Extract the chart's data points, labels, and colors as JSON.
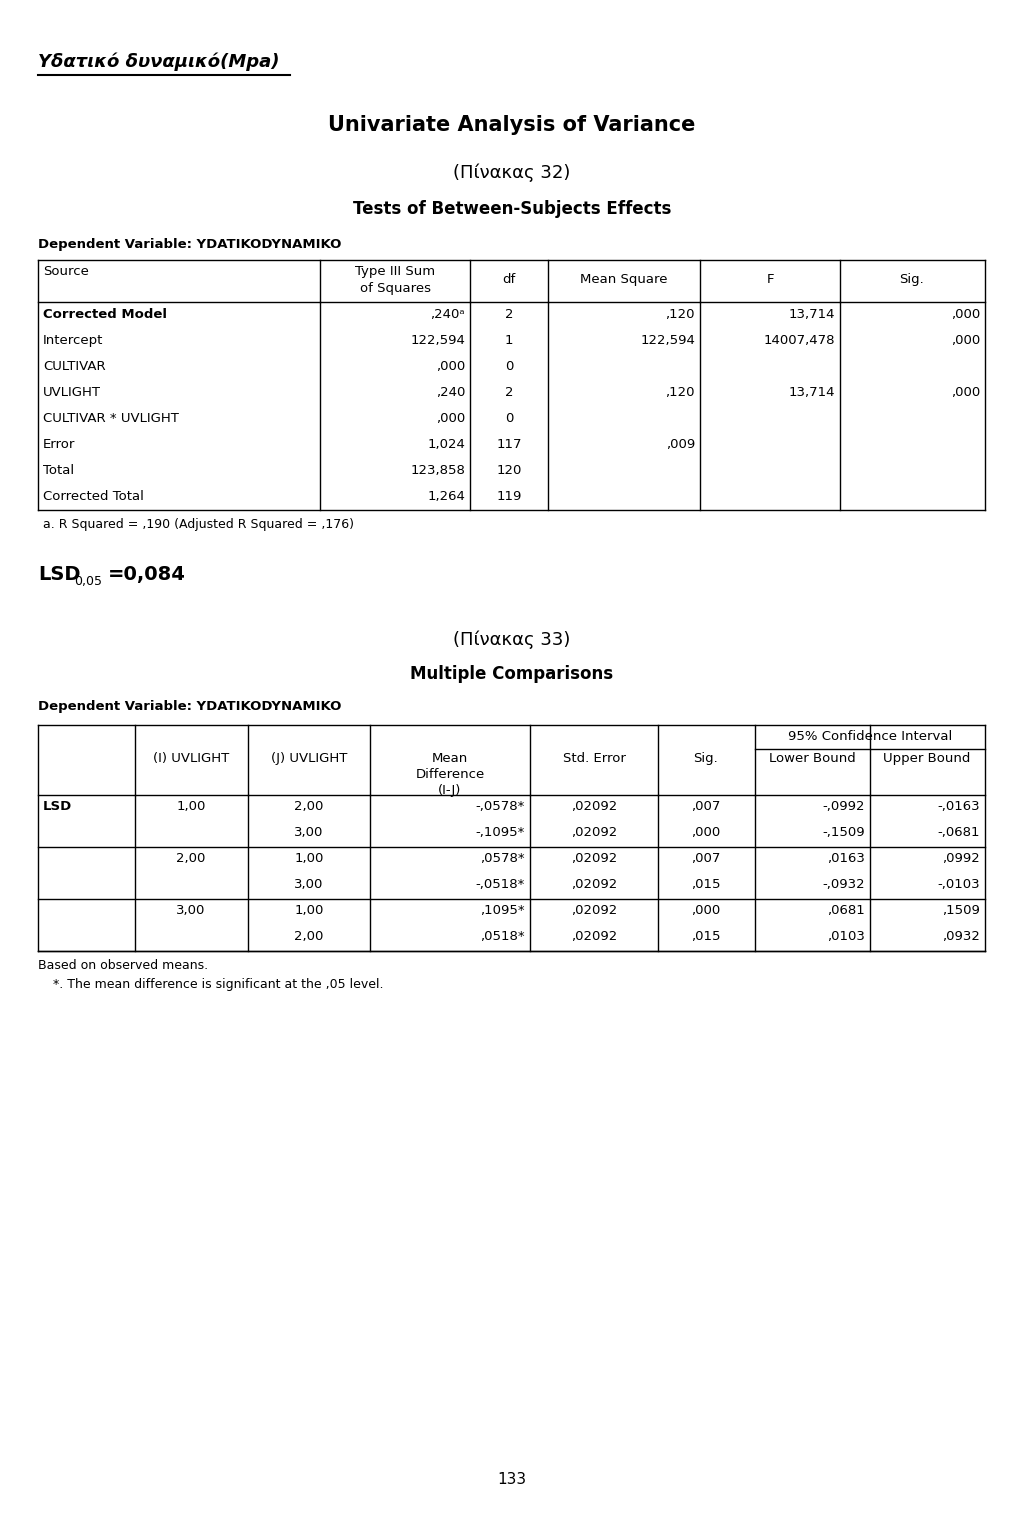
{
  "page_title": "Υδατικό δυναμικό(Mpa)",
  "main_title": "Univariate Analysis of Variance",
  "subtitle1": "(Πίνακας 32)",
  "subtitle2": "Tests of Between-Subjects Effects",
  "dep_var1": "Dependent Variable: YDATIKODYNAMIKO",
  "table1_rows": [
    [
      "Corrected Model",
      ",240ᵃ",
      "2",
      ",120",
      "13,714",
      ",000"
    ],
    [
      "Intercept",
      "122,594",
      "1",
      "122,594",
      "14007,478",
      ",000"
    ],
    [
      "CULTIVAR",
      ",000",
      "0",
      "",
      "",
      ""
    ],
    [
      "UVLIGHT",
      ",240",
      "2",
      ",120",
      "13,714",
      ",000"
    ],
    [
      "CULTIVAR * UVLIGHT",
      ",000",
      "0",
      "",
      "",
      ""
    ],
    [
      "Error",
      "1,024",
      "117",
      ",009",
      "",
      ""
    ],
    [
      "Total",
      "123,858",
      "120",
      "",
      "",
      ""
    ],
    [
      "Corrected Total",
      "1,264",
      "119",
      "",
      "",
      ""
    ]
  ],
  "footnote1": "a. R Squared = ,190 (Adjusted R Squared = ,176)",
  "lsd_subscript": "0,05",
  "lsd_value": "=0,084",
  "subtitle3": "(Πίνακας 33)",
  "subtitle4": "Multiple Comparisons",
  "dep_var2": "Dependent Variable: YDATIKODYNAMIKO",
  "table2_span_header": "95% Confidence Interval",
  "table2_rows": [
    [
      "LSD",
      "1,00",
      "2,00",
      "-,0578*",
      ",02092",
      ",007",
      "-,0992",
      "-,0163"
    ],
    [
      "",
      "",
      "3,00",
      "-,1095*",
      ",02092",
      ",000",
      "-,1509",
      "-,0681"
    ],
    [
      "",
      "2,00",
      "1,00",
      ",0578*",
      ",02092",
      ",007",
      ",0163",
      ",0992"
    ],
    [
      "",
      "",
      "3,00",
      "-,0518*",
      ",02092",
      ",015",
      "-,0932",
      "-,0103"
    ],
    [
      "",
      "3,00",
      "1,00",
      ",1095*",
      ",02092",
      ",000",
      ",0681",
      ",1509"
    ],
    [
      "",
      "",
      "2,00",
      ",0518*",
      ",02092",
      ",015",
      ",0103",
      ",0932"
    ]
  ],
  "footnote2": "Based on observed means.",
  "footnote3": "*. The mean difference is significant at the ,05 level.",
  "page_number": "133",
  "bg_color": "#ffffff",
  "text_color": "#000000"
}
